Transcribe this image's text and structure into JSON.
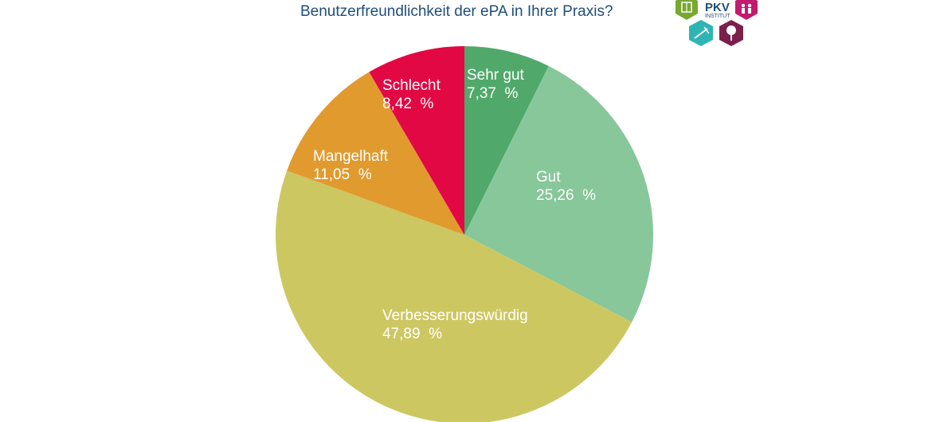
{
  "chart_data": {
    "type": "pie",
    "title": "Benutzerfreundlichkeit der ePA in Ihrer Praxis?",
    "slices": [
      {
        "label": "Sehr gut",
        "value": 7.37,
        "display": "7,37  %",
        "color": "#50a96a"
      },
      {
        "label": "Gut",
        "value": 25.26,
        "display": "25,26  %",
        "color": "#87c799"
      },
      {
        "label": "Verbesserungswürdig",
        "value": 47.89,
        "display": "47,89  %",
        "color": "#cdc762"
      },
      {
        "label": "Mangelhaft",
        "value": 11.05,
        "display": "11,05  %",
        "color": "#e19a2e"
      },
      {
        "label": "Schlecht",
        "value": 8.42,
        "display": "8,42  %",
        "color": "#e10844"
      }
    ]
  },
  "logo": {
    "text_main": "PKV",
    "text_sub": "INSTITUT",
    "colors": {
      "green": "#78a830",
      "magenta": "#c21a6e",
      "teal": "#2fb4b4",
      "purple": "#7c1f4b"
    },
    "icons": [
      "puzzle-icon",
      "people-icon",
      "syringe-icon",
      "tree-icon"
    ]
  }
}
